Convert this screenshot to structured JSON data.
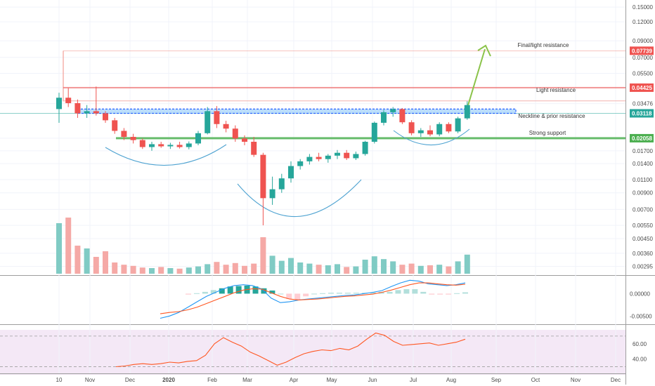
{
  "chart_data": [
    {
      "type": "candlestick",
      "panel": "price",
      "y_scale": "log",
      "ylim": [
        0.0027,
        0.16
      ],
      "y_ticks": [
        "0.15000",
        "0.12000",
        "0.09000",
        "0.07000",
        "0.05500",
        "0.04425",
        "0.03476",
        "0.02058",
        "0.01700",
        "0.01400",
        "0.01100",
        "0.00900",
        "0.00700",
        "0.00550",
        "0.00450",
        "0.00360",
        "0.00295"
      ],
      "x_ticks": [
        "10",
        "Nov",
        "Dec",
        "2020",
        "Feb",
        "Mar",
        "Apr",
        "May",
        "Jun",
        "Jul",
        "Aug",
        "Sep",
        "Oct",
        "Nov",
        "Dec"
      ],
      "price_labels": [
        {
          "text": "0.07739",
          "color": "#ef5350"
        },
        {
          "text": "0.04425",
          "color": "#ef5350"
        },
        {
          "text": "0.03118",
          "color": "#26a69a"
        },
        {
          "text": "0.02058",
          "color": "#4caf50"
        }
      ],
      "levels": [
        {
          "name": "Final/light resistance",
          "value": 0.07739,
          "color": "#f28b82"
        },
        {
          "name": "Light resistance",
          "value": 0.04425,
          "color": "#ef5350"
        },
        {
          "name": "Neckline & prior resistance",
          "value": 0.0312,
          "color": "#2962ff"
        },
        {
          "name": "Strong support",
          "value": 0.02058,
          "color": "#66bb6a"
        }
      ],
      "series": [
        {
          "name": "",
          "points": [
            {
              "x": "2019-10-10",
              "o": 0.032,
              "h": 0.041,
              "l": 0.026,
              "c": 0.038
            },
            {
              "x": "2019-10-17",
              "o": 0.038,
              "h": 0.044,
              "l": 0.033,
              "c": 0.035
            },
            {
              "x": "2019-10-24",
              "o": 0.035,
              "h": 0.037,
              "l": 0.028,
              "c": 0.03
            },
            {
              "x": "2019-10-31",
              "o": 0.03,
              "h": 0.034,
              "l": 0.028,
              "c": 0.031
            },
            {
              "x": "2019-11-07",
              "o": 0.031,
              "h": 0.045,
              "l": 0.029,
              "c": 0.03
            },
            {
              "x": "2019-11-14",
              "o": 0.03,
              "h": 0.031,
              "l": 0.026,
              "c": 0.027
            },
            {
              "x": "2019-11-21",
              "o": 0.027,
              "h": 0.028,
              "l": 0.022,
              "c": 0.023
            },
            {
              "x": "2019-11-28",
              "o": 0.023,
              "h": 0.024,
              "l": 0.02,
              "c": 0.021
            },
            {
              "x": "2019-12-05",
              "o": 0.021,
              "h": 0.022,
              "l": 0.019,
              "c": 0.02
            },
            {
              "x": "2019-12-12",
              "o": 0.02,
              "h": 0.0205,
              "l": 0.0175,
              "c": 0.018
            },
            {
              "x": "2019-12-19",
              "o": 0.018,
              "h": 0.0195,
              "l": 0.017,
              "c": 0.0188
            },
            {
              "x": "2019-12-26",
              "o": 0.0188,
              "h": 0.0195,
              "l": 0.0178,
              "c": 0.0182
            },
            {
              "x": "2020-01-02",
              "o": 0.0182,
              "h": 0.0192,
              "l": 0.0175,
              "c": 0.0186
            },
            {
              "x": "2020-01-09",
              "o": 0.0186,
              "h": 0.0195,
              "l": 0.0176,
              "c": 0.018
            },
            {
              "x": "2020-01-16",
              "o": 0.018,
              "h": 0.0196,
              "l": 0.0174,
              "c": 0.019
            },
            {
              "x": "2020-01-23",
              "o": 0.019,
              "h": 0.023,
              "l": 0.0185,
              "c": 0.0222
            },
            {
              "x": "2020-01-30",
              "o": 0.0222,
              "h": 0.033,
              "l": 0.0218,
              "c": 0.031
            },
            {
              "x": "2020-02-06",
              "o": 0.031,
              "h": 0.0335,
              "l": 0.024,
              "c": 0.0255
            },
            {
              "x": "2020-02-13",
              "o": 0.0255,
              "h": 0.0268,
              "l": 0.0225,
              "c": 0.0238
            },
            {
              "x": "2020-02-20",
              "o": 0.0238,
              "h": 0.025,
              "l": 0.0195,
              "c": 0.0205
            },
            {
              "x": "2020-02-27",
              "o": 0.0205,
              "h": 0.0215,
              "l": 0.0185,
              "c": 0.0195
            },
            {
              "x": "2020-03-05",
              "o": 0.0195,
              "h": 0.021,
              "l": 0.0155,
              "c": 0.016
            },
            {
              "x": "2020-03-12",
              "o": 0.016,
              "h": 0.0165,
              "l": 0.0055,
              "c": 0.0083
            },
            {
              "x": "2020-03-19",
              "o": 0.0083,
              "h": 0.0115,
              "l": 0.0075,
              "c": 0.0095
            },
            {
              "x": "2020-03-26",
              "o": 0.0095,
              "h": 0.012,
              "l": 0.009,
              "c": 0.0112
            },
            {
              "x": "2020-04-02",
              "o": 0.0112,
              "h": 0.0145,
              "l": 0.0105,
              "c": 0.0135
            },
            {
              "x": "2020-04-09",
              "o": 0.0135,
              "h": 0.015,
              "l": 0.0128,
              "c": 0.0145
            },
            {
              "x": "2020-04-16",
              "o": 0.0145,
              "h": 0.0162,
              "l": 0.0138,
              "c": 0.0155
            },
            {
              "x": "2020-04-23",
              "o": 0.0155,
              "h": 0.0165,
              "l": 0.0145,
              "c": 0.015
            },
            {
              "x": "2020-04-30",
              "o": 0.015,
              "h": 0.0162,
              "l": 0.0142,
              "c": 0.0158
            },
            {
              "x": "2020-05-07",
              "o": 0.0158,
              "h": 0.0172,
              "l": 0.015,
              "c": 0.0165
            },
            {
              "x": "2020-05-14",
              "o": 0.0165,
              "h": 0.0172,
              "l": 0.0148,
              "c": 0.0152
            },
            {
              "x": "2020-05-21",
              "o": 0.0152,
              "h": 0.0168,
              "l": 0.0148,
              "c": 0.0162
            },
            {
              "x": "2020-05-28",
              "o": 0.0162,
              "h": 0.0198,
              "l": 0.0158,
              "c": 0.0195
            },
            {
              "x": "2020-06-04",
              "o": 0.0195,
              "h": 0.0265,
              "l": 0.019,
              "c": 0.026
            },
            {
              "x": "2020-06-11",
              "o": 0.026,
              "h": 0.0315,
              "l": 0.025,
              "c": 0.0305
            },
            {
              "x": "2020-06-18",
              "o": 0.0305,
              "h": 0.033,
              "l": 0.0285,
              "c": 0.032
            },
            {
              "x": "2020-06-25",
              "o": 0.032,
              "h": 0.0325,
              "l": 0.0255,
              "c": 0.0262
            },
            {
              "x": "2020-07-02",
              "o": 0.0262,
              "h": 0.027,
              "l": 0.0215,
              "c": 0.0222
            },
            {
              "x": "2020-07-09",
              "o": 0.0222,
              "h": 0.024,
              "l": 0.021,
              "c": 0.0232
            },
            {
              "x": "2020-07-16",
              "o": 0.0232,
              "h": 0.025,
              "l": 0.0212,
              "c": 0.0218
            },
            {
              "x": "2020-07-23",
              "o": 0.0218,
              "h": 0.0262,
              "l": 0.0212,
              "c": 0.0255
            },
            {
              "x": "2020-07-30",
              "o": 0.0255,
              "h": 0.0262,
              "l": 0.0222,
              "c": 0.0228
            },
            {
              "x": "2020-08-06",
              "o": 0.0228,
              "h": 0.0285,
              "l": 0.0222,
              "c": 0.0278
            },
            {
              "x": "2020-08-13",
              "o": 0.0278,
              "h": 0.036,
              "l": 0.0272,
              "c": 0.034
            }
          ]
        }
      ]
    },
    {
      "type": "bar",
      "panel": "volume",
      "series": [
        {
          "name": "",
          "values": [
            9,
            10,
            5,
            4.5,
            3,
            4,
            2,
            1.6,
            1.4,
            1.1,
            1,
            1.2,
            1,
            0.9,
            1.1,
            1.3,
            1.7,
            2.1,
            1.6,
            1.9,
            1.4,
            1.8,
            6.5,
            3.2,
            2.3,
            2.8,
            2,
            1.8,
            1.6,
            1.5,
            1.7,
            1.2,
            1.3,
            2.5,
            3.1,
            2.6,
            2.2,
            1.6,
            1.8,
            1.4,
            1.5,
            1.6,
            1.3,
            2.2,
            3.4
          ]
        }
      ]
    },
    {
      "type": "line",
      "panel": "macd",
      "y_ticks": [
        "0.00000",
        "-0.00500"
      ],
      "series": [
        {
          "name": "",
          "color": "#2196f3",
          "values": [
            -0.0055,
            -0.005,
            -0.0042,
            -0.003,
            -0.0018,
            -0.0006,
            0.0003,
            0.0012,
            0.0018,
            0.002,
            0.0018,
            0.001,
            -0.001,
            -0.002,
            -0.0018,
            -0.0014,
            -0.0012,
            -0.001,
            -0.0008,
            -0.0006,
            -0.0004,
            -0.0003,
            0.0,
            0.0003,
            0.0007,
            0.0016,
            0.0024,
            0.003,
            0.0028,
            0.0022,
            0.002,
            0.0018,
            0.002,
            0.0024
          ]
        },
        {
          "name": "",
          "color": "#ff5722",
          "values": [
            -0.0045,
            -0.0042,
            -0.004,
            -0.0036,
            -0.003,
            -0.0022,
            -0.0014,
            -0.0006,
            0.0002,
            0.0008,
            0.0011,
            0.001,
            0.0002,
            -0.0006,
            -0.0012,
            -0.0014,
            -0.0013,
            -0.0012,
            -0.001,
            -0.0008,
            -0.0006,
            -0.0005,
            -0.0003,
            -0.0001,
            0.0003,
            0.0008,
            0.0014,
            0.002,
            0.0024,
            0.0024,
            0.0022,
            0.002,
            0.0019,
            0.0021
          ]
        }
      ],
      "histogram": [
        -0.0002,
        0.0001,
        0.0004,
        0.0008,
        0.0012,
        0.0016,
        0.0017,
        0.0018,
        0.0016,
        0.0012,
        0.0007,
        0.0,
        -0.0012,
        -0.0014,
        -0.0006,
        0.0,
        0.0001,
        0.0002,
        0.0002,
        0.0002,
        0.0002,
        0.0002,
        0.0003,
        0.0004,
        0.0004,
        0.0008,
        0.001,
        0.001,
        0.0004,
        -0.0002,
        -0.0002,
        -0.0002,
        0.0001,
        0.0003
      ]
    },
    {
      "type": "line",
      "panel": "rsi",
      "y_ticks": [
        "60.00",
        "40.00"
      ],
      "ylim": [
        25,
        80
      ],
      "bands": [
        30,
        70
      ],
      "series": [
        {
          "name": "",
          "color": "#ff5722",
          "values": [
            30,
            31,
            33,
            34,
            33,
            34,
            36,
            35,
            37,
            38,
            45,
            60,
            68,
            62,
            57,
            49,
            44,
            38,
            32,
            36,
            42,
            47,
            50,
            52,
            51,
            54,
            52,
            57,
            66,
            74,
            71,
            63,
            58,
            59,
            60,
            61,
            58,
            60,
            62,
            66
          ]
        }
      ]
    }
  ]
}
